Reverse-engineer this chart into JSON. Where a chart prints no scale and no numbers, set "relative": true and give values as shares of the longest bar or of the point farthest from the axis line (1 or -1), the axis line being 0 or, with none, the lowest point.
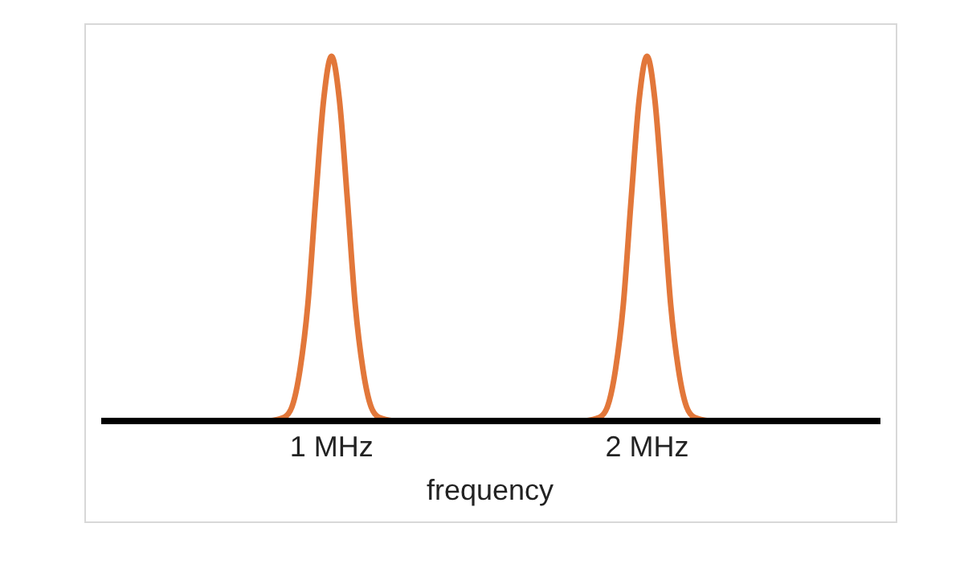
{
  "chart_data": {
    "type": "line",
    "xlabel": "frequency",
    "relative": true,
    "xlim": [
      0.27,
      2.74
    ],
    "xticks": [
      {
        "value": 1,
        "label": "1 MHz"
      },
      {
        "value": 2,
        "label": "2 MHz"
      }
    ],
    "series": [
      {
        "color": "#e2773a",
        "x": [
          0.8,
          0.85,
          0.875,
          0.9,
          0.925,
          0.95,
          0.975,
          1,
          1.025,
          1.05,
          1.075,
          1.1,
          1.125,
          1.15,
          1.2
        ],
        "values": [
          0,
          0.01,
          0.04,
          0.14,
          0.32,
          0.61,
          0.88,
          1,
          0.88,
          0.61,
          0.32,
          0.14,
          0.04,
          0.01,
          0
        ]
      },
      {
        "color": "#e2773a",
        "x": [
          1.8,
          1.85,
          1.875,
          1.9,
          1.925,
          1.95,
          1.975,
          2,
          2.025,
          2.05,
          2.075,
          2.1,
          2.125,
          2.15,
          2.2
        ],
        "values": [
          0,
          0.01,
          0.04,
          0.14,
          0.32,
          0.61,
          0.88,
          1,
          0.88,
          0.61,
          0.32,
          0.14,
          0.04,
          0.01,
          0
        ]
      }
    ]
  }
}
